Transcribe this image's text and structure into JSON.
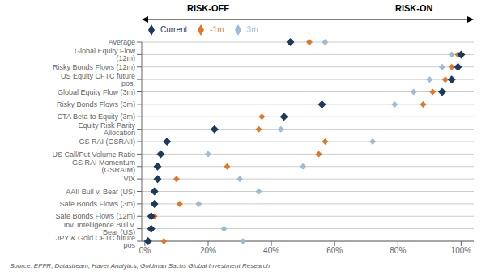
{
  "chart_data": {
    "type": "scatter",
    "categories": [
      "Average",
      "Global Equity Flow (12m)",
      "Risky Bonds Flows (12m)",
      "US Equity CFTC future pos.",
      "Global Equity Flow (3m)",
      "Risky Bonds Flows (3m)",
      "CTA Beta to Equity (3m)",
      "Equity Risk Parity Allocation",
      "GS RAI (GSRAII)",
      "US Call/Put Volume Ratio",
      "GS RAI Momentum (GSRAIM)",
      "VIX",
      "AAII Bull v. Bear (US)",
      "Safe Bonds Flows (3m)",
      "Safe Bonds Flows (12m)",
      "Inv. Intelligence Bull v. Bear (US)",
      "JPY & Gold CFTC future pos"
    ],
    "series": [
      {
        "name": "Current",
        "color": "#1b3a5c",
        "values": [
          0.46,
          1.0,
          0.99,
          0.97,
          0.94,
          0.56,
          0.44,
          0.22,
          0.07,
          0.05,
          0.04,
          0.04,
          0.03,
          0.03,
          0.02,
          0.02,
          0.01
        ]
      },
      {
        "name": "-1m",
        "color": "#e07828",
        "values": [
          0.52,
          0.99,
          0.97,
          0.95,
          0.91,
          0.88,
          0.37,
          0.36,
          0.57,
          0.55,
          0.26,
          0.1,
          0.03,
          0.11,
          0.03,
          0.02,
          0.06
        ]
      },
      {
        "name": "3m",
        "color": "#9cbcd8",
        "values": [
          0.57,
          0.97,
          0.94,
          0.9,
          0.85,
          0.79,
          0.44,
          0.43,
          0.72,
          0.2,
          0.5,
          0.3,
          0.36,
          0.17,
          0.02,
          0.25,
          0.31
        ]
      }
    ],
    "xlim": [
      -0.01,
      1.04
    ],
    "xticks": [
      {
        "value": 0.0,
        "label": "0%"
      },
      {
        "value": 0.2,
        "label": "20%"
      },
      {
        "value": 0.4,
        "label": "40%"
      },
      {
        "value": 0.6,
        "label": "60%"
      },
      {
        "value": 0.8,
        "label": "80%"
      },
      {
        "value": 1.0,
        "label": "100%"
      }
    ],
    "marker": "diamond",
    "grid": true,
    "legend": "top",
    "annotations": [
      "RISK-OFF",
      "RISK-ON",
      "Source: EPFR, Datastream, Haver Analytics, Goldman Sachs Global Investment Research"
    ]
  }
}
